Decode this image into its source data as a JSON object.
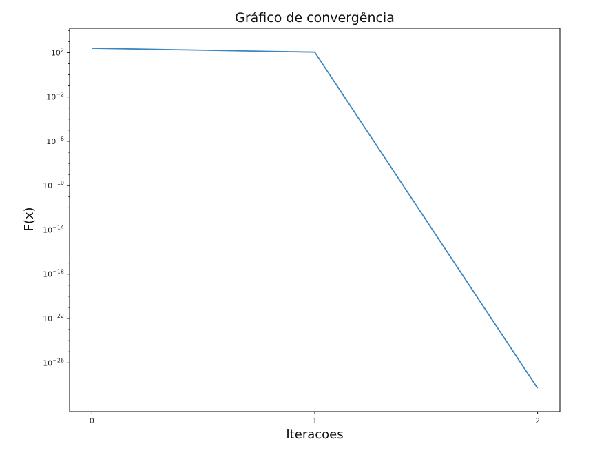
{
  "chart_data": {
    "type": "line",
    "title": "Gráfico de convergência",
    "xlabel": "Iteracoes",
    "ylabel": "F(x)",
    "yscale": "log",
    "x": [
      0,
      1,
      2
    ],
    "series": [
      {
        "values": [
          250,
          110,
          5e-29
        ],
        "color": "#3a86c1"
      }
    ],
    "xticks": [
      0,
      1,
      2
    ],
    "xtick_labels": [
      "0",
      "1",
      "2"
    ],
    "xlim": [
      -0.1,
      2.1
    ],
    "yticks": [
      2,
      -2,
      -6,
      -10,
      -14,
      -18,
      -22,
      -26
    ],
    "ytick_labels": [
      {
        "base": "10",
        "exp": "2"
      },
      {
        "base": "10",
        "exp": "−2"
      },
      {
        "base": "10",
        "exp": "−6"
      },
      {
        "base": "10",
        "exp": "−10"
      },
      {
        "base": "10",
        "exp": "−14"
      },
      {
        "base": "10",
        "exp": "−18"
      },
      {
        "base": "10",
        "exp": "−22"
      },
      {
        "base": "10",
        "exp": "−26"
      }
    ],
    "ylim_log10": [
      -30.4,
      4.2
    ],
    "grid": false,
    "legend": false
  }
}
